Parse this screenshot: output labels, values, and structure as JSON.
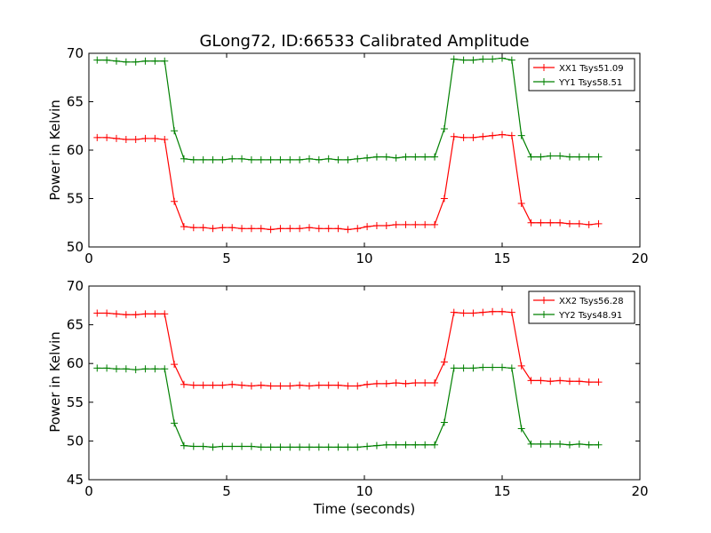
{
  "chart_data": [
    {
      "type": "line",
      "title": "GLong72, ID:66533 Calibrated Amplitude",
      "ylabel": "Power in Kelvin",
      "xlabel": "",
      "xlim": [
        0,
        20
      ],
      "ylim": [
        50,
        70
      ],
      "xticks": [
        0,
        5,
        10,
        15,
        20
      ],
      "yticks": [
        50,
        55,
        60,
        65,
        70
      ],
      "legend_position": "top-right",
      "grid": false,
      "series": [
        {
          "name": "XX1 Tsys51.09",
          "color": "#ff0000",
          "x": [
            0.3,
            0.65,
            1.0,
            1.35,
            1.7,
            2.05,
            2.4,
            2.75,
            3.1,
            3.45,
            3.8,
            4.15,
            4.5,
            4.85,
            5.2,
            5.55,
            5.9,
            6.25,
            6.6,
            6.95,
            7.3,
            7.65,
            8.0,
            8.35,
            8.7,
            9.05,
            9.4,
            9.75,
            10.1,
            10.45,
            10.8,
            11.15,
            11.5,
            11.85,
            12.2,
            12.55,
            12.9,
            13.25,
            13.6,
            13.95,
            14.3,
            14.65,
            15.0,
            15.35,
            15.7,
            16.05,
            16.4,
            16.75,
            17.1,
            17.45,
            17.8,
            18.15,
            18.5
          ],
          "y": [
            61.3,
            61.3,
            61.2,
            61.1,
            61.1,
            61.2,
            61.2,
            61.1,
            54.7,
            52.1,
            52.0,
            52.0,
            51.9,
            52.0,
            52.0,
            51.9,
            51.9,
            51.9,
            51.8,
            51.9,
            51.9,
            51.9,
            52.0,
            51.9,
            51.9,
            51.9,
            51.8,
            51.9,
            52.1,
            52.2,
            52.2,
            52.3,
            52.3,
            52.3,
            52.3,
            52.3,
            55.0,
            61.4,
            61.3,
            61.3,
            61.4,
            61.5,
            61.6,
            61.5,
            54.5,
            52.5,
            52.5,
            52.5,
            52.5,
            52.4,
            52.4,
            52.3,
            52.4
          ]
        },
        {
          "name": "YY1 Tsys58.51",
          "color": "#008000",
          "x": [
            0.3,
            0.65,
            1.0,
            1.35,
            1.7,
            2.05,
            2.4,
            2.75,
            3.1,
            3.45,
            3.8,
            4.15,
            4.5,
            4.85,
            5.2,
            5.55,
            5.9,
            6.25,
            6.6,
            6.95,
            7.3,
            7.65,
            8.0,
            8.35,
            8.7,
            9.05,
            9.4,
            9.75,
            10.1,
            10.45,
            10.8,
            11.15,
            11.5,
            11.85,
            12.2,
            12.55,
            12.9,
            13.25,
            13.6,
            13.95,
            14.3,
            14.65,
            15.0,
            15.35,
            15.7,
            16.05,
            16.4,
            16.75,
            17.1,
            17.45,
            17.8,
            18.15,
            18.5
          ],
          "y": [
            69.3,
            69.3,
            69.2,
            69.1,
            69.1,
            69.2,
            69.2,
            69.2,
            62.0,
            59.1,
            59.0,
            59.0,
            59.0,
            59.0,
            59.1,
            59.1,
            59.0,
            59.0,
            59.0,
            59.0,
            59.0,
            59.0,
            59.1,
            59.0,
            59.1,
            59.0,
            59.0,
            59.1,
            59.2,
            59.3,
            59.3,
            59.2,
            59.3,
            59.3,
            59.3,
            59.3,
            62.2,
            69.4,
            69.3,
            69.3,
            69.4,
            69.4,
            69.5,
            69.3,
            61.5,
            59.3,
            59.3,
            59.4,
            59.4,
            59.3,
            59.3,
            59.3,
            59.3
          ]
        }
      ]
    },
    {
      "type": "line",
      "title": "",
      "ylabel": "Power in Kelvin",
      "xlabel": "Time (seconds)",
      "xlim": [
        0,
        20
      ],
      "ylim": [
        45,
        70
      ],
      "xticks": [
        0,
        5,
        10,
        15,
        20
      ],
      "yticks": [
        45,
        50,
        55,
        60,
        65,
        70
      ],
      "legend_position": "top-right",
      "grid": false,
      "series": [
        {
          "name": "XX2 Tsys56.28",
          "color": "#ff0000",
          "x": [
            0.3,
            0.65,
            1.0,
            1.35,
            1.7,
            2.05,
            2.4,
            2.75,
            3.1,
            3.45,
            3.8,
            4.15,
            4.5,
            4.85,
            5.2,
            5.55,
            5.9,
            6.25,
            6.6,
            6.95,
            7.3,
            7.65,
            8.0,
            8.35,
            8.7,
            9.05,
            9.4,
            9.75,
            10.1,
            10.45,
            10.8,
            11.15,
            11.5,
            11.85,
            12.2,
            12.55,
            12.9,
            13.25,
            13.6,
            13.95,
            14.3,
            14.65,
            15.0,
            15.35,
            15.7,
            16.05,
            16.4,
            16.75,
            17.1,
            17.45,
            17.8,
            18.15,
            18.5
          ],
          "y": [
            66.5,
            66.5,
            66.4,
            66.3,
            66.3,
            66.4,
            66.4,
            66.4,
            59.9,
            57.3,
            57.2,
            57.2,
            57.2,
            57.2,
            57.3,
            57.2,
            57.1,
            57.2,
            57.1,
            57.1,
            57.1,
            57.2,
            57.1,
            57.2,
            57.2,
            57.2,
            57.1,
            57.1,
            57.3,
            57.4,
            57.4,
            57.5,
            57.4,
            57.5,
            57.5,
            57.5,
            60.2,
            66.6,
            66.5,
            66.5,
            66.6,
            66.7,
            66.7,
            66.6,
            59.7,
            57.8,
            57.8,
            57.7,
            57.8,
            57.7,
            57.7,
            57.6,
            57.6
          ]
        },
        {
          "name": "YY2 Tsys48.91",
          "color": "#008000",
          "x": [
            0.3,
            0.65,
            1.0,
            1.35,
            1.7,
            2.05,
            2.4,
            2.75,
            3.1,
            3.45,
            3.8,
            4.15,
            4.5,
            4.85,
            5.2,
            5.55,
            5.9,
            6.25,
            6.6,
            6.95,
            7.3,
            7.65,
            8.0,
            8.35,
            8.7,
            9.05,
            9.4,
            9.75,
            10.1,
            10.45,
            10.8,
            11.15,
            11.5,
            11.85,
            12.2,
            12.55,
            12.9,
            13.25,
            13.6,
            13.95,
            14.3,
            14.65,
            15.0,
            15.35,
            15.7,
            16.05,
            16.4,
            16.75,
            17.1,
            17.45,
            17.8,
            18.15,
            18.5
          ],
          "y": [
            59.4,
            59.4,
            59.3,
            59.3,
            59.2,
            59.3,
            59.3,
            59.3,
            52.3,
            49.4,
            49.3,
            49.3,
            49.2,
            49.3,
            49.3,
            49.3,
            49.3,
            49.2,
            49.2,
            49.2,
            49.2,
            49.2,
            49.2,
            49.2,
            49.2,
            49.2,
            49.2,
            49.2,
            49.3,
            49.4,
            49.5,
            49.5,
            49.5,
            49.5,
            49.5,
            49.5,
            52.4,
            59.4,
            59.4,
            59.4,
            59.5,
            59.5,
            59.5,
            59.4,
            51.6,
            49.6,
            49.6,
            49.6,
            49.6,
            49.5,
            49.6,
            49.5,
            49.5
          ]
        }
      ]
    }
  ]
}
